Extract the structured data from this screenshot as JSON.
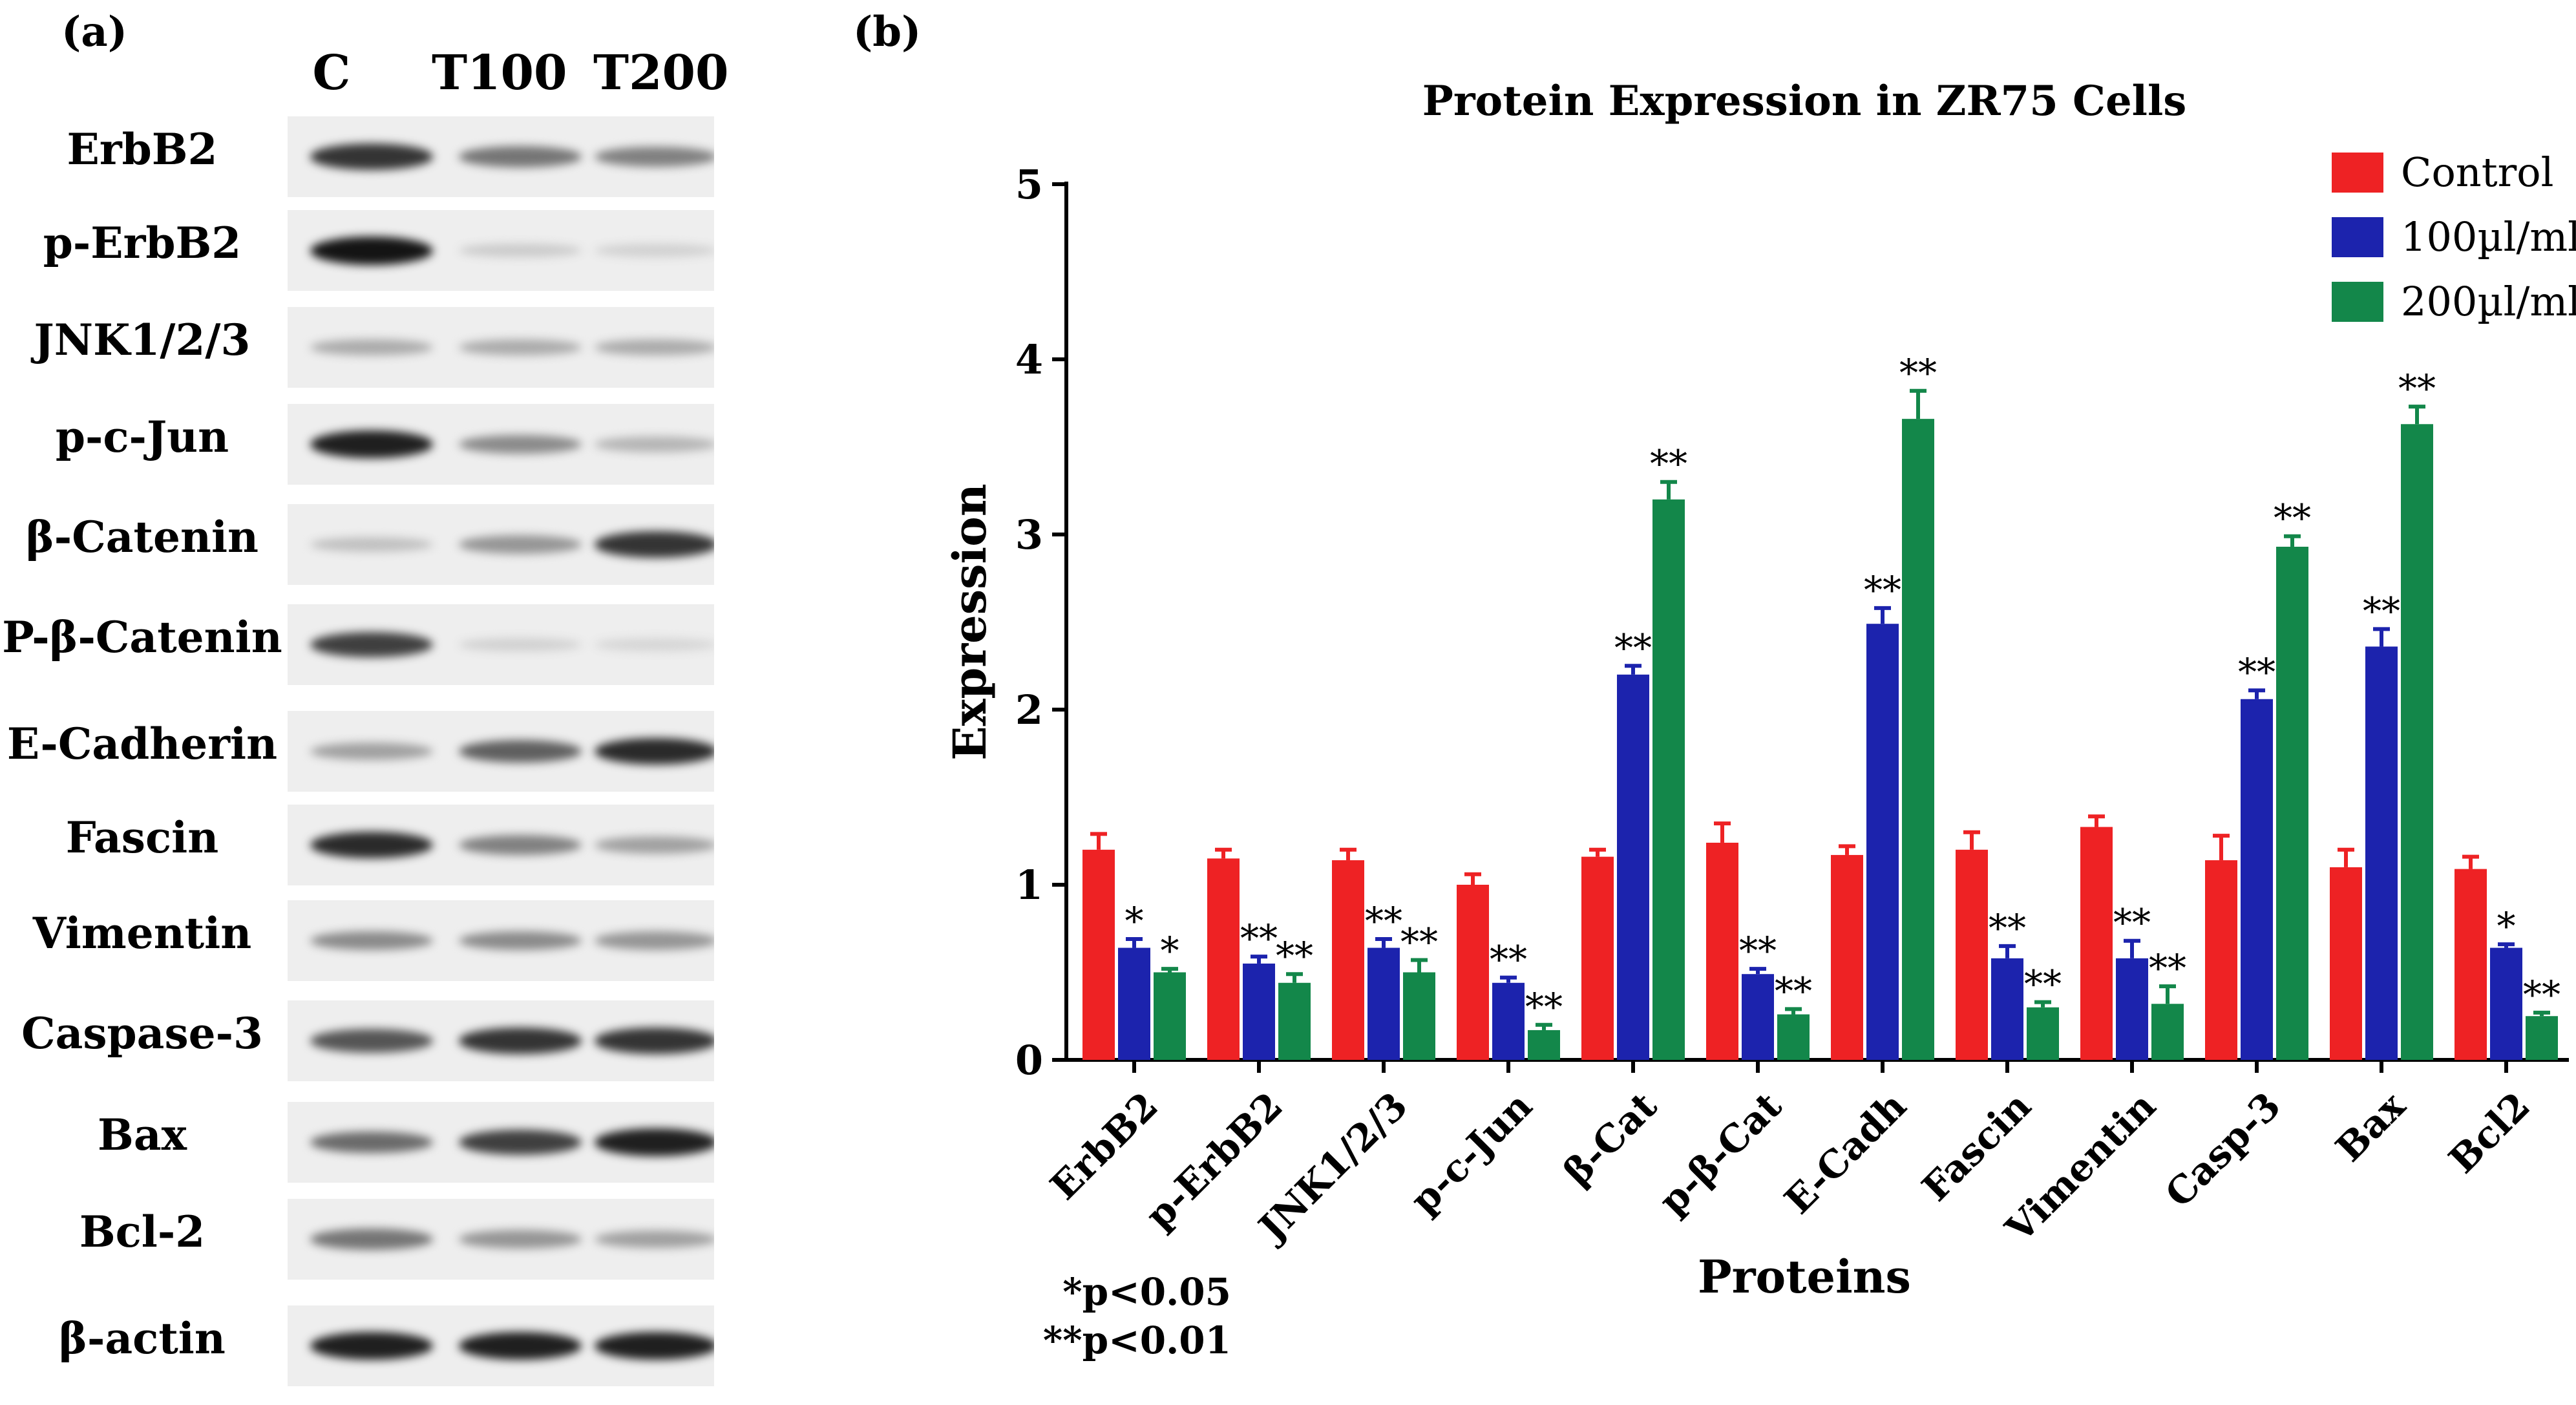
{
  "panel_a": {
    "letter": "(a)",
    "lanes": [
      "C",
      "T100",
      "T200"
    ],
    "rows": [
      {
        "label": "ErbB2",
        "intensity": [
          0.85,
          0.55,
          0.5
        ]
      },
      {
        "label": "p-ErbB2",
        "intensity": [
          1.0,
          0.15,
          0.12
        ]
      },
      {
        "label": "JNK1/2/3",
        "intensity": [
          0.3,
          0.3,
          0.3
        ]
      },
      {
        "label": "p-c-Jun",
        "intensity": [
          0.95,
          0.45,
          0.25
        ]
      },
      {
        "label": "β-Catenin",
        "intensity": [
          0.2,
          0.4,
          0.85
        ]
      },
      {
        "label": "P-β-Catenin",
        "intensity": [
          0.8,
          0.12,
          0.1
        ]
      },
      {
        "label": "E-Cadherin",
        "intensity": [
          0.35,
          0.65,
          0.9
        ]
      },
      {
        "label": "Fascin",
        "intensity": [
          0.9,
          0.5,
          0.35
        ]
      },
      {
        "label": "Vimentin",
        "intensity": [
          0.45,
          0.45,
          0.4
        ]
      },
      {
        "label": "Caspase-3",
        "intensity": [
          0.7,
          0.85,
          0.85
        ]
      },
      {
        "label": "Bax",
        "intensity": [
          0.6,
          0.8,
          0.95
        ]
      },
      {
        "label": "Bcl-2",
        "intensity": [
          0.55,
          0.4,
          0.35
        ]
      },
      {
        "label": "β-actin",
        "intensity": [
          0.95,
          0.95,
          0.95
        ]
      }
    ]
  },
  "panel_b": {
    "letter": "(b)",
    "footnote_1": "*p<0.05",
    "footnote_2": "**p<0.01"
  },
  "chart_data": {
    "type": "bar",
    "title": "Protein Expression in ZR75 Cells",
    "xlabel": "Proteins",
    "ylabel": "Expression",
    "ylim": [
      0,
      5
    ],
    "yticks": [
      0,
      1,
      2,
      3,
      4,
      5
    ],
    "categories": [
      "ErbB2",
      "p-ErbB2",
      "JNK1/2/3",
      "p-c-Jun",
      "β-Cat",
      "p-β-Cat",
      "E-Cadh",
      "Fascin",
      "Vimentin",
      "Casp-3",
      "Bax",
      "Bcl2"
    ],
    "legend_position": "top-right",
    "series": [
      {
        "name": "Control",
        "color": "#ee2224",
        "values": [
          1.2,
          1.15,
          1.14,
          1.0,
          1.16,
          1.24,
          1.17,
          1.2,
          1.33,
          1.14,
          1.1,
          1.09
        ],
        "errors": [
          0.09,
          0.05,
          0.06,
          0.06,
          0.04,
          0.11,
          0.05,
          0.1,
          0.06,
          0.14,
          0.1,
          0.07
        ],
        "sig": [
          "",
          "",
          "",
          "",
          "",
          "",
          "",
          "",
          "",
          "",
          "",
          ""
        ]
      },
      {
        "name": "100µl/ml",
        "color": "#1c23ad",
        "values": [
          0.64,
          0.55,
          0.64,
          0.44,
          2.2,
          0.49,
          2.49,
          0.58,
          0.58,
          2.06,
          2.36,
          0.64
        ],
        "errors": [
          0.05,
          0.04,
          0.05,
          0.03,
          0.05,
          0.03,
          0.09,
          0.07,
          0.1,
          0.05,
          0.1,
          0.02
        ],
        "sig": [
          "*",
          "**",
          "**",
          "**",
          "**",
          "**",
          "**",
          "**",
          "**",
          "**",
          "**",
          "*"
        ]
      },
      {
        "name": "200µl/ml",
        "color": "#13874a",
        "values": [
          0.5,
          0.44,
          0.5,
          0.17,
          3.2,
          0.26,
          3.66,
          0.3,
          0.32,
          2.93,
          3.63,
          0.25
        ],
        "errors": [
          0.02,
          0.05,
          0.07,
          0.03,
          0.1,
          0.03,
          0.16,
          0.03,
          0.1,
          0.06,
          0.1,
          0.02
        ],
        "sig": [
          "*",
          "**",
          "**",
          "**",
          "**",
          "**",
          "**",
          "**",
          "**",
          "**",
          "**",
          "**"
        ]
      }
    ]
  }
}
